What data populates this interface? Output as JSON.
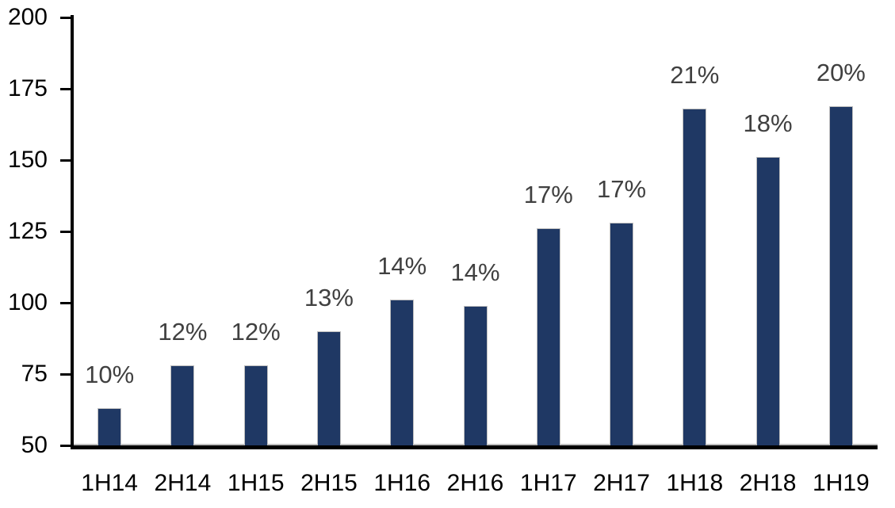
{
  "chart_data": {
    "type": "bar",
    "categories": [
      "1H14",
      "2H14",
      "1H15",
      "2H15",
      "1H16",
      "2H16",
      "1H17",
      "2H17",
      "1H18",
      "2H18",
      "1H19"
    ],
    "values": [
      63,
      78,
      78,
      90,
      101,
      99,
      126,
      128,
      168,
      151,
      169
    ],
    "bar_labels": [
      "10%",
      "12%",
      "12%",
      "13%",
      "14%",
      "14%",
      "17%",
      "17%",
      "21%",
      "18%",
      "20%"
    ],
    "title": "",
    "xlabel": "",
    "ylabel": "",
    "ylim": [
      50,
      200
    ],
    "yticks": [
      50,
      75,
      100,
      125,
      150,
      175,
      200
    ],
    "grid": false,
    "legend": false,
    "bar_color": "#1F3864",
    "bar_border_color": "#BFBFBF",
    "value_label_color": "#404040",
    "axis_color": "#000000",
    "tick_label_color": "#000000"
  }
}
